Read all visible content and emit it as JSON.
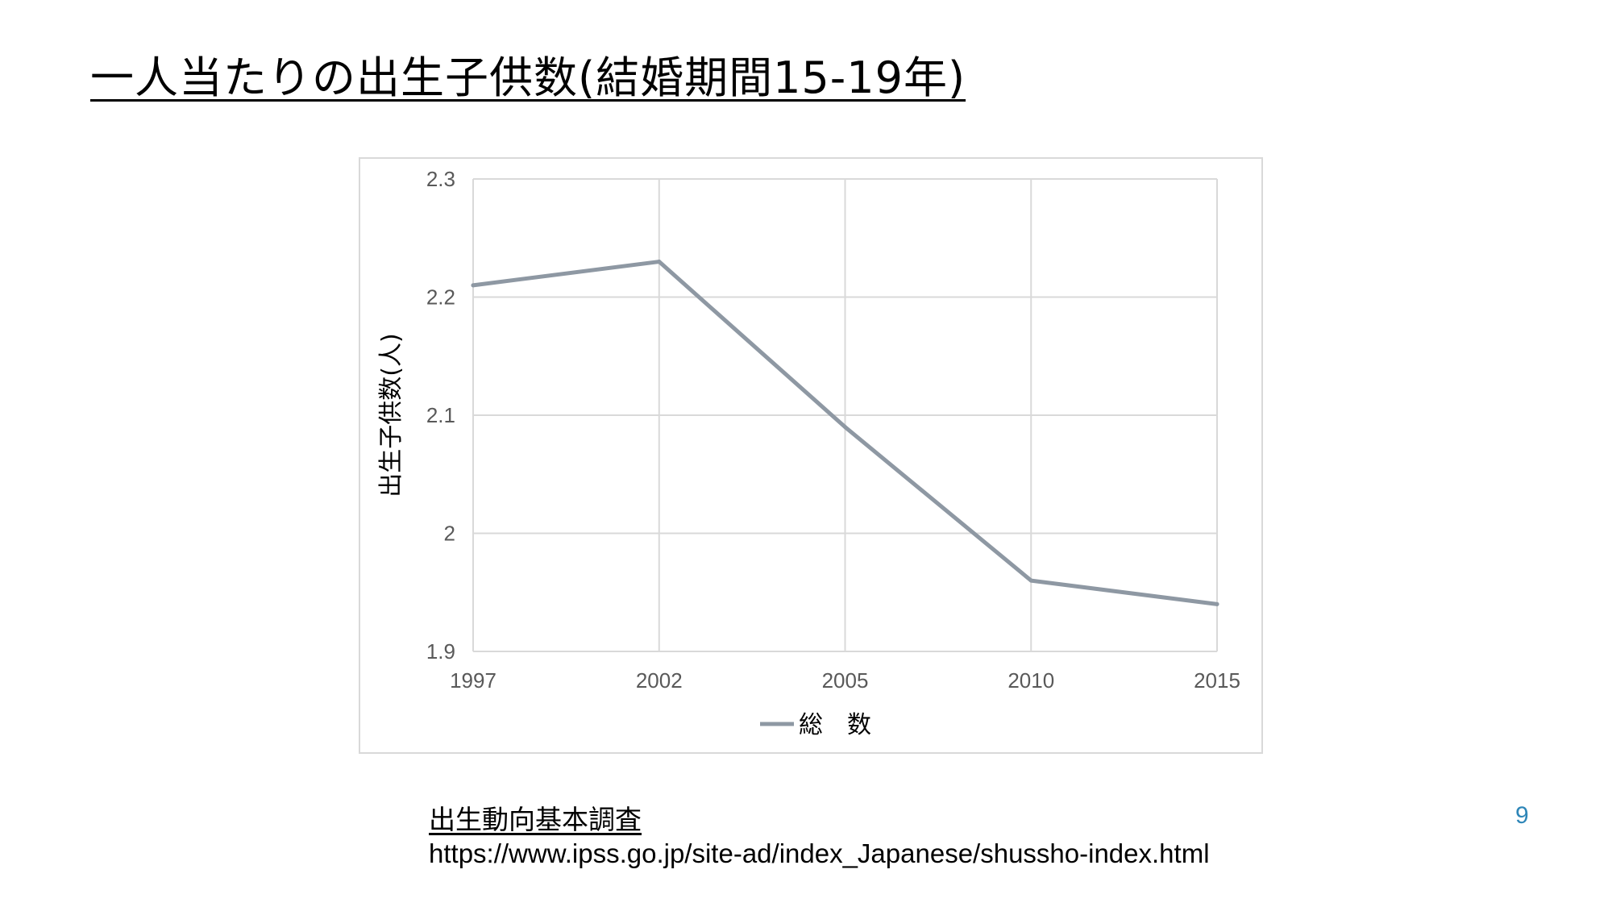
{
  "slide": {
    "title": "一人当たりの出生子供数(結婚期間15-19年)",
    "source_title": "出生動向基本調査",
    "source_url": "https://www.ipss.go.jp/site-ad/index_Japanese/shussho-index.html",
    "page_number": "9"
  },
  "chart_data": {
    "type": "line",
    "title": "",
    "xlabel": "",
    "ylabel": "出生子供数(人)",
    "categories": [
      "1997",
      "2002",
      "2005",
      "2010",
      "2015"
    ],
    "ylim": [
      1.9,
      2.3
    ],
    "yticks": [
      "1.9",
      "2",
      "2.1",
      "2.2",
      "2.3"
    ],
    "grid": true,
    "legend_position": "bottom",
    "series": [
      {
        "name": "総　数",
        "values": [
          2.21,
          2.23,
          2.09,
          1.96,
          1.94
        ],
        "color": "#8e98a3"
      }
    ]
  },
  "colors": {
    "gridline": "#d9d9d9",
    "tick_label": "#595959",
    "page_number": "#2e86b8"
  }
}
